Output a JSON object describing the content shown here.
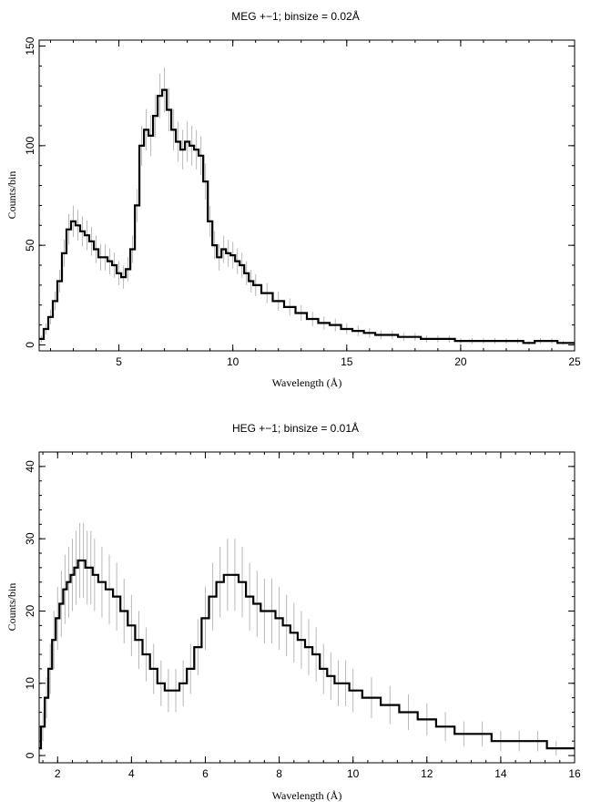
{
  "chart_data": [
    {
      "type": "line",
      "title": "MEG +−1; binsize = 0.02Å",
      "xlabel": "Wavelength (Å)",
      "ylabel": "Counts/bin",
      "xlim": [
        1.5,
        25
      ],
      "ylim": [
        -3,
        153
      ],
      "xticks": [
        5,
        10,
        15,
        20,
        25
      ],
      "yticks": [
        0,
        50,
        100,
        150
      ],
      "grid": false,
      "legend": "none",
      "series": [
        {
          "style": "histogram-step with grey error bars",
          "x": [
            1.6,
            1.8,
            2.0,
            2.2,
            2.4,
            2.6,
            2.8,
            3.0,
            3.2,
            3.4,
            3.6,
            3.8,
            4.0,
            4.2,
            4.4,
            4.6,
            4.8,
            5.0,
            5.2,
            5.4,
            5.6,
            5.8,
            6.0,
            6.2,
            6.4,
            6.6,
            6.8,
            7.0,
            7.2,
            7.4,
            7.6,
            7.8,
            8.0,
            8.2,
            8.4,
            8.6,
            8.8,
            9.0,
            9.2,
            9.4,
            9.6,
            9.8,
            10.0,
            10.2,
            10.4,
            10.6,
            10.8,
            11.0,
            11.5,
            12.0,
            12.5,
            13.0,
            13.5,
            14.0,
            14.5,
            15.0,
            15.5,
            16.0,
            16.5,
            17.0,
            17.5,
            18.0,
            18.5,
            19.0,
            19.5,
            20.0,
            20.5,
            21.0,
            21.5,
            22.0,
            22.5,
            23.0,
            23.5,
            24.0,
            24.5,
            25.0
          ],
          "y": [
            3,
            8,
            14,
            22,
            32,
            46,
            58,
            62,
            60,
            57,
            55,
            52,
            48,
            44,
            44,
            42,
            40,
            36,
            34,
            38,
            48,
            70,
            100,
            108,
            105,
            115,
            125,
            128,
            118,
            108,
            102,
            98,
            102,
            100,
            98,
            95,
            82,
            62,
            50,
            44,
            48,
            46,
            45,
            42,
            40,
            36,
            32,
            30,
            26,
            22,
            19,
            16,
            13,
            11,
            10,
            8,
            7,
            6,
            5,
            5,
            4,
            4,
            3,
            3,
            3,
            2,
            2,
            2,
            2,
            2,
            2,
            1,
            2,
            2,
            1,
            1
          ]
        }
      ]
    },
    {
      "type": "line",
      "title": "HEG +−1; binsize = 0.01Å",
      "xlabel": "Wavelength (Å)",
      "ylabel": "Counts/bin",
      "xlim": [
        1.5,
        16
      ],
      "ylim": [
        -1,
        42
      ],
      "xticks": [
        2,
        4,
        6,
        8,
        10,
        12,
        14,
        16
      ],
      "yticks": [
        0,
        10,
        20,
        30,
        40
      ],
      "grid": false,
      "legend": "none",
      "series": [
        {
          "style": "histogram-step with grey error bars",
          "x": [
            1.5,
            1.6,
            1.7,
            1.8,
            1.9,
            2.0,
            2.1,
            2.2,
            2.3,
            2.4,
            2.5,
            2.6,
            2.7,
            2.8,
            2.9,
            3.0,
            3.2,
            3.4,
            3.6,
            3.8,
            4.0,
            4.2,
            4.4,
            4.6,
            4.8,
            5.0,
            5.2,
            5.4,
            5.6,
            5.8,
            6.0,
            6.2,
            6.4,
            6.6,
            6.8,
            7.0,
            7.2,
            7.4,
            7.6,
            7.8,
            8.0,
            8.2,
            8.4,
            8.6,
            8.8,
            9.0,
            9.2,
            9.4,
            9.6,
            9.8,
            10.0,
            10.5,
            11.0,
            11.5,
            12.0,
            12.5,
            13.0,
            13.5,
            14.0,
            14.5,
            15.0,
            15.5,
            16.0
          ],
          "y": [
            1,
            4,
            8,
            12,
            16,
            19,
            21,
            23,
            24,
            25,
            26,
            27,
            27,
            26,
            26,
            25,
            24,
            23,
            22,
            20,
            18,
            16,
            14,
            12,
            10,
            9,
            9,
            10,
            12,
            15,
            19,
            22,
            24,
            25,
            25,
            24,
            22,
            21,
            20,
            20,
            19,
            18,
            17,
            16,
            15,
            14,
            12,
            11,
            10,
            10,
            9,
            8,
            7,
            6,
            5,
            4,
            3,
            3,
            2,
            2,
            2,
            1,
            1
          ]
        }
      ]
    }
  ]
}
